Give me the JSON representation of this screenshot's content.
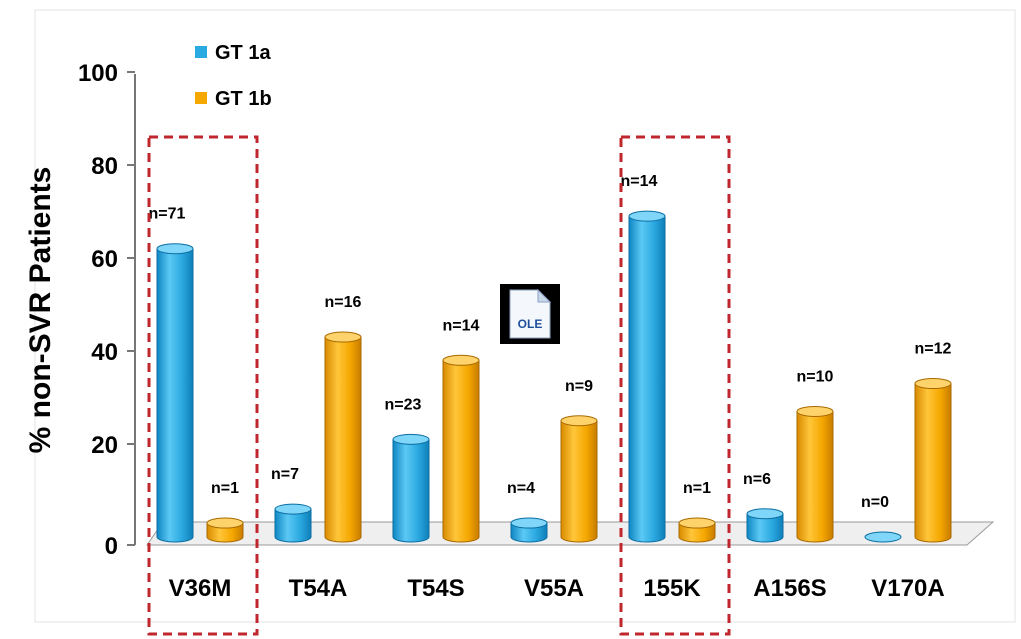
{
  "chart_data": {
    "type": "bar",
    "categories": [
      "V36M",
      "T54A",
      "T54S",
      "V55A",
      "155K",
      "A156S",
      "V170A"
    ],
    "ylabel": "% non-SVR Patients",
    "ylim": [
      0,
      100
    ],
    "yticks": [
      "0",
      "20",
      "40",
      "60",
      "80",
      "100"
    ],
    "legend_position": "top-left",
    "series": [
      {
        "name": "GT 1a",
        "color": "#29abe2",
        "values": [
          62,
          6,
          21,
          3,
          69,
          5,
          0
        ],
        "labels": [
          "n=71",
          "n=7",
          "n=23",
          "n=4",
          "n=14",
          "n=6",
          "n=0"
        ]
      },
      {
        "name": "GT 1b",
        "color": "#f5a800",
        "values": [
          3,
          43,
          38,
          25,
          3,
          27,
          33
        ],
        "labels": [
          "n=1",
          "n=16",
          "n=14",
          "n=9",
          "n=1",
          "n=10",
          "n=12"
        ]
      }
    ],
    "highlighted_categories": [
      "V36M",
      "155K"
    ],
    "embedded_object_label": "OLE"
  }
}
